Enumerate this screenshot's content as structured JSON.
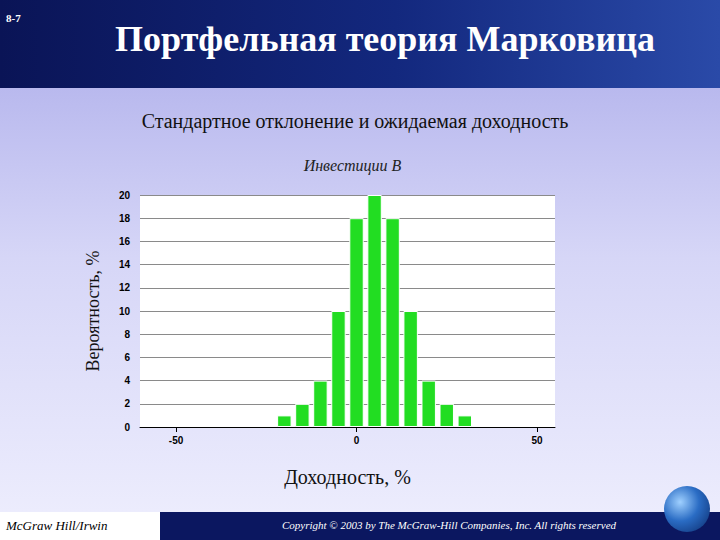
{
  "header": {
    "slide_number": "8-7",
    "title": "Портфельная теория Марковица",
    "subtitle": "Стандартное отклонение и ожидаемая доходность"
  },
  "footer": {
    "publisher": "McGraw Hill/Irwin",
    "copyright": "Copyright © 2003 by The McGraw-Hill Companies, Inc. All rights reserved"
  },
  "chart_data": {
    "type": "bar",
    "title": "Инвестиции В",
    "x_label": "Доходность, %",
    "y_label": "Вероятность, %",
    "x": [
      -20,
      -15,
      -10,
      -5,
      0,
      5,
      10,
      15,
      20,
      25,
      30
    ],
    "values": [
      1,
      2,
      4,
      10,
      18,
      20,
      18,
      10,
      4,
      2,
      1
    ],
    "color": "#22dd22",
    "xlim": [
      -60,
      55
    ],
    "xticks": [
      -50,
      0,
      50
    ],
    "ylim": [
      0,
      20
    ],
    "yticks": [
      0,
      2,
      4,
      6,
      8,
      10,
      12,
      14,
      16,
      18,
      20
    ],
    "grid": true
  }
}
